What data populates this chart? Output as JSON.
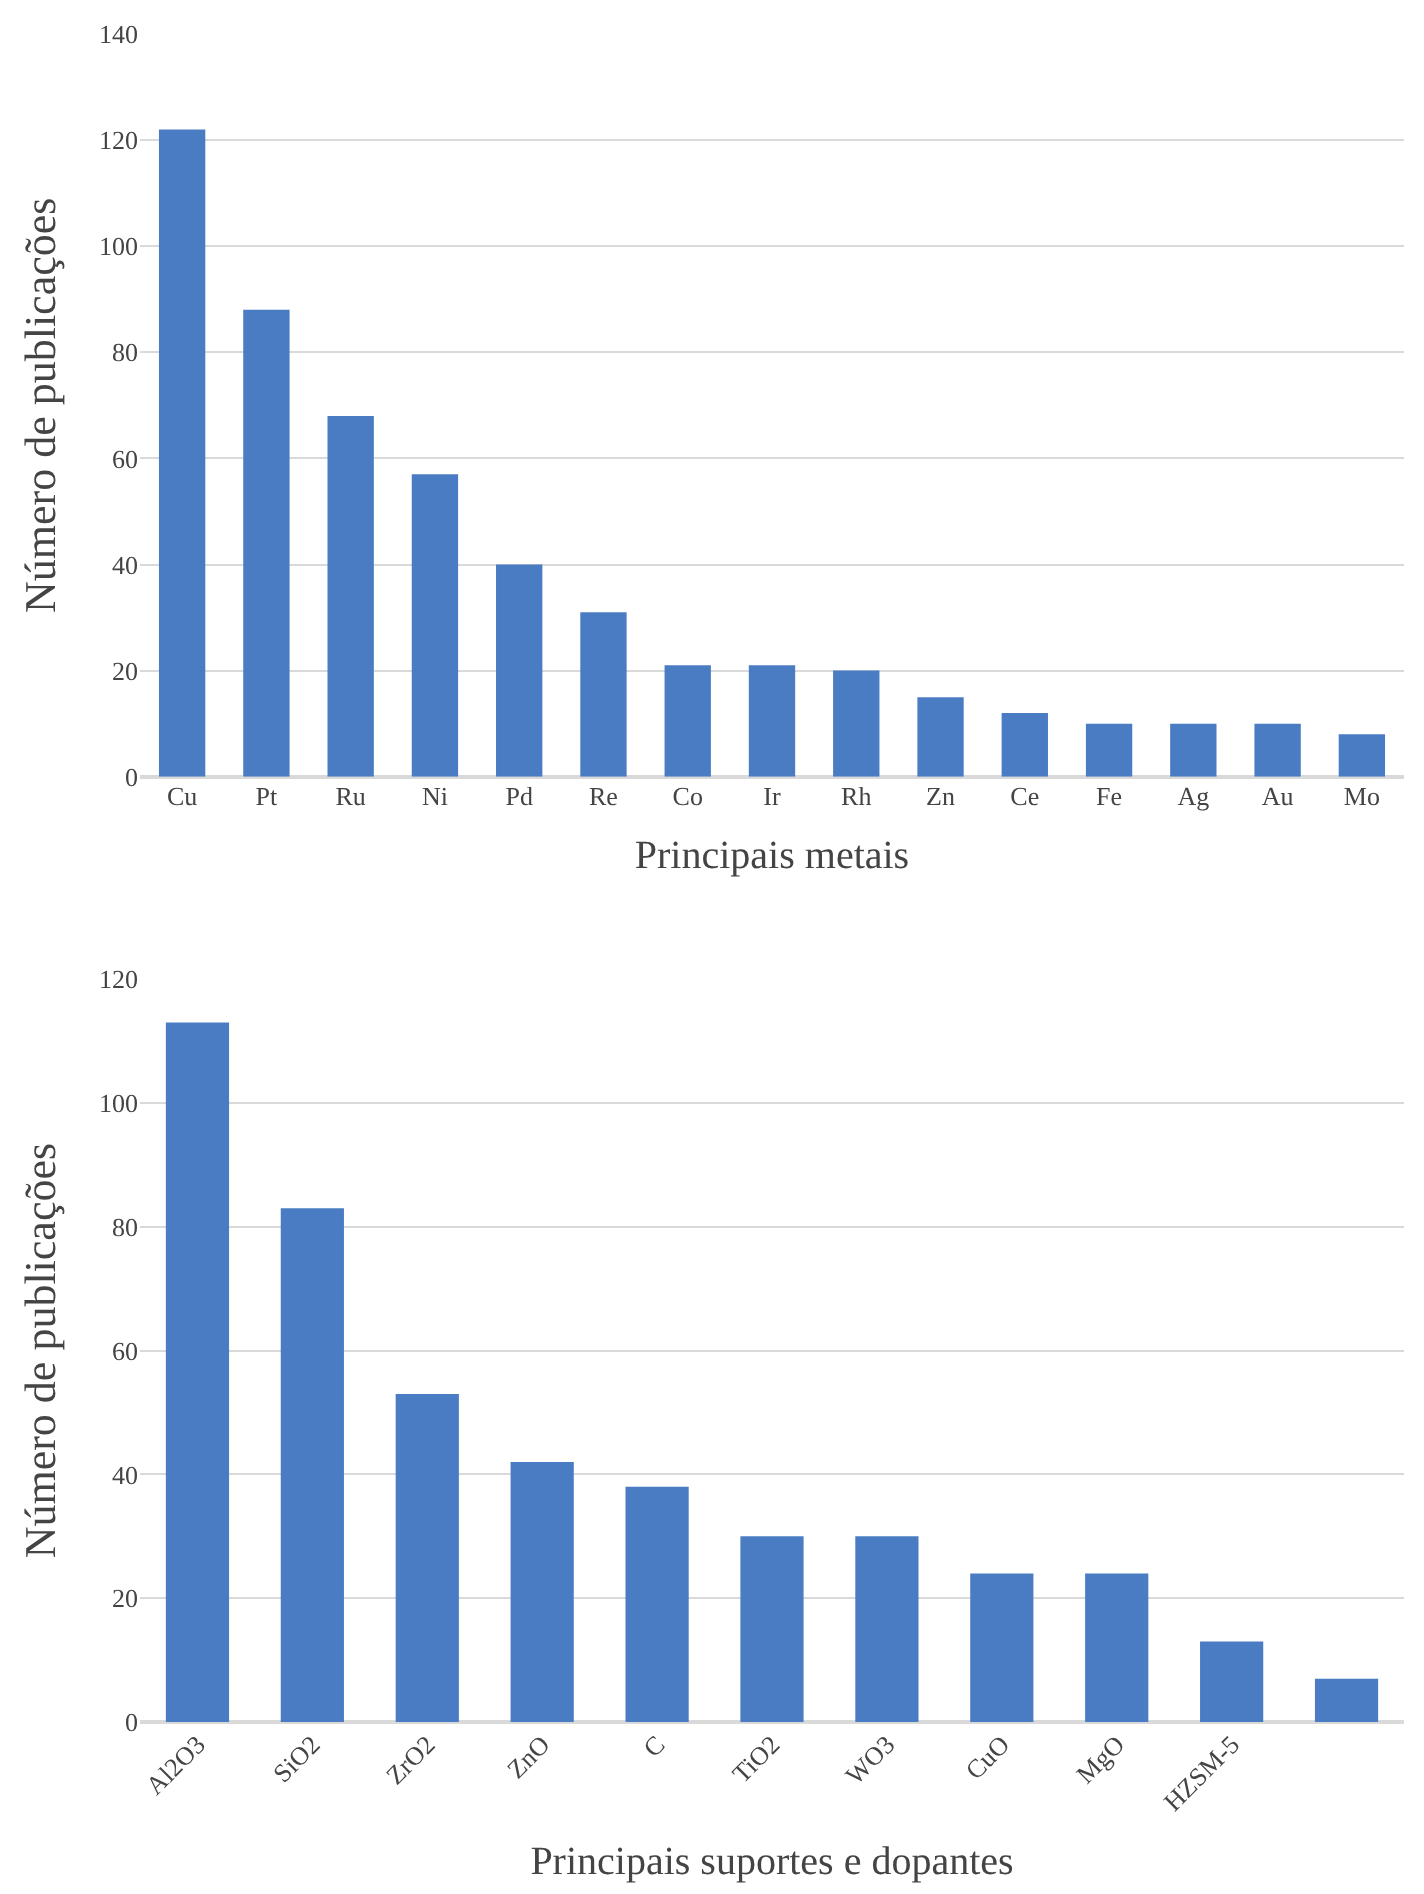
{
  "chart_data": [
    {
      "type": "bar",
      "xlabel": "Principais metais",
      "ylabel": "Número de publicações",
      "categories": [
        "Cu",
        "Pt",
        "Ru",
        "Ni",
        "Pd",
        "Re",
        "Co",
        "Ir",
        "Rh",
        "Zn",
        "Ce",
        "Fe",
        "Ag",
        "Au",
        "Mo"
      ],
      "values": [
        122,
        88,
        68,
        57,
        40,
        31,
        21,
        21,
        20,
        15,
        12,
        10,
        10,
        10,
        8
      ],
      "color": "#4a7cc4",
      "ylim": [
        0,
        140
      ],
      "yticks": [
        0,
        20,
        40,
        60,
        80,
        100,
        120,
        140
      ],
      "grid": "y",
      "legend": false
    },
    {
      "type": "bar",
      "xlabel": "Principais suportes e dopantes",
      "ylabel": "Número de publicações",
      "categories": [
        "Al2O3",
        "SiO2",
        "ZrO2",
        "ZnO",
        "C",
        "TiO2",
        "WO3",
        "CuO",
        "MgO",
        "HZSM-5",
        null
      ],
      "values": [
        113,
        83,
        53,
        42,
        38,
        30,
        30,
        24,
        24,
        13,
        7
      ],
      "color": "#4a7cc4",
      "ylim": [
        0,
        120
      ],
      "yticks": [
        0,
        20,
        40,
        60,
        80,
        100,
        120
      ],
      "grid": "y",
      "legend": false
    }
  ]
}
